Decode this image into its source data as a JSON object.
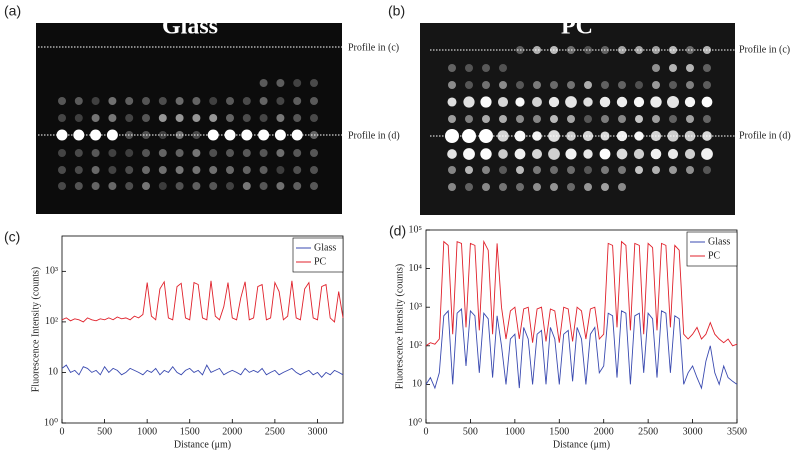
{
  "images": [
    {
      "label": "(a)",
      "title": "Glass",
      "profiles": [
        "Profile in (c)",
        "Profile in (d)"
      ]
    },
    {
      "label": "(b)",
      "title": "PC",
      "profiles": [
        "Profile in (c)",
        "Profile in (d)"
      ]
    }
  ],
  "chart_data": [
    {
      "type": "line",
      "label": "(c)",
      "xlabel": "Distance (μm)",
      "ylabel": "Fluorescence Intensity (counts)",
      "yscale": "log",
      "legend": "upper right",
      "xlim": [
        0,
        3300
      ],
      "xticks": [
        0,
        500,
        1000,
        1500,
        2000,
        2500,
        3000
      ],
      "ylim": [
        1,
        5000
      ],
      "yticks": [
        {
          "value": 1,
          "label": "10⁰"
        },
        10,
        {
          "value": 100,
          "label": "10²"
        },
        {
          "value": 1000,
          "label": "10³"
        }
      ],
      "x": [
        0,
        50,
        100,
        150,
        200,
        250,
        300,
        350,
        400,
        450,
        500,
        550,
        600,
        650,
        700,
        750,
        800,
        850,
        900,
        950,
        1000,
        1050,
        1100,
        1150,
        1200,
        1250,
        1300,
        1350,
        1400,
        1450,
        1500,
        1550,
        1600,
        1650,
        1700,
        1750,
        1800,
        1850,
        1900,
        1950,
        2000,
        2050,
        2100,
        2150,
        2200,
        2250,
        2300,
        2350,
        2400,
        2450,
        2500,
        2550,
        2600,
        2650,
        2700,
        2750,
        2800,
        2850,
        2900,
        2950,
        3000,
        3050,
        3100,
        3150,
        3200,
        3250,
        3300
      ],
      "series": [
        {
          "name": "Glass",
          "color": "#3a4ab0",
          "values": [
            12,
            14,
            10,
            11,
            9,
            13,
            12,
            10,
            11,
            9,
            13,
            10,
            12,
            11,
            9,
            10,
            12,
            11,
            10,
            9,
            11,
            10,
            12,
            9,
            11,
            10,
            13,
            10,
            9,
            11,
            12,
            10,
            11,
            9,
            14,
            10,
            11,
            12,
            9,
            10,
            11,
            10,
            9,
            12,
            10,
            11,
            10,
            12,
            9,
            10,
            11,
            9,
            10,
            11,
            12,
            10,
            9,
            10,
            11,
            9,
            10,
            8,
            10,
            9,
            11,
            10,
            9
          ]
        },
        {
          "name": "PC",
          "color": "#e0212b",
          "values": [
            110,
            120,
            105,
            115,
            110,
            100,
            120,
            110,
            105,
            115,
            110,
            120,
            110,
            125,
            115,
            120,
            110,
            130,
            120,
            140,
            600,
            130,
            110,
            450,
            620,
            120,
            110,
            500,
            580,
            120,
            110,
            600,
            550,
            120,
            110,
            650,
            130,
            110,
            200,
            600,
            120,
            110,
            300,
            620,
            110,
            120,
            500,
            550,
            110,
            120,
            600,
            400,
            110,
            130,
            650,
            120,
            110,
            450,
            600,
            120,
            110,
            500,
            550,
            120,
            100,
            400,
            120
          ]
        }
      ]
    },
    {
      "type": "line",
      "label": "(d)",
      "xlabel": "Distance (μm)",
      "ylabel": "Fluorescence Intensity (counts)",
      "yscale": "log",
      "legend": "upper right",
      "xlim": [
        0,
        3500
      ],
      "xticks": [
        0,
        500,
        1000,
        1500,
        2000,
        2500,
        3000,
        3500
      ],
      "ylim": [
        1,
        100000
      ],
      "yticks": [
        {
          "value": 1,
          "label": "10⁰"
        },
        10,
        {
          "value": 100,
          "label": "10²"
        },
        {
          "value": 1000,
          "label": "10³"
        },
        {
          "value": 10000,
          "label": "10⁴"
        },
        {
          "value": 100000,
          "label": "10⁵"
        }
      ],
      "x": [
        0,
        50,
        100,
        150,
        200,
        250,
        300,
        350,
        400,
        450,
        500,
        550,
        600,
        650,
        700,
        750,
        800,
        850,
        900,
        950,
        1000,
        1050,
        1100,
        1150,
        1200,
        1250,
        1300,
        1350,
        1400,
        1450,
        1500,
        1550,
        1600,
        1650,
        1700,
        1750,
        1800,
        1850,
        1900,
        1950,
        2000,
        2050,
        2100,
        2150,
        2200,
        2250,
        2300,
        2350,
        2400,
        2450,
        2500,
        2550,
        2600,
        2650,
        2700,
        2750,
        2800,
        2850,
        2900,
        2950,
        3000,
        3050,
        3100,
        3150,
        3200,
        3250,
        3300,
        3350,
        3400,
        3450,
        3500
      ],
      "series": [
        {
          "name": "Glass",
          "color": "#3a4ab0",
          "values": [
            10,
            15,
            8,
            20,
            600,
            800,
            10,
            700,
            900,
            30,
            800,
            600,
            20,
            700,
            500,
            15,
            600,
            100,
            10,
            150,
            200,
            8,
            300,
            150,
            10,
            200,
            250,
            10,
            300,
            150,
            10,
            200,
            250,
            12,
            300,
            150,
            10,
            200,
            300,
            20,
            30,
            700,
            600,
            15,
            800,
            700,
            10,
            600,
            700,
            20,
            700,
            500,
            15,
            800,
            700,
            20,
            600,
            500,
            10,
            20,
            30,
            15,
            8,
            40,
            100,
            20,
            10,
            30,
            15,
            12,
            10
          ]
        },
        {
          "name": "PC",
          "color": "#e0212b",
          "values": [
            100,
            120,
            110,
            150,
            50000,
            40000,
            200,
            50000,
            45000,
            300,
            45000,
            40000,
            250,
            50000,
            30000,
            200,
            45000,
            1000,
            150,
            800,
            1000,
            150,
            900,
            1000,
            120,
            900,
            1000,
            130,
            900,
            800,
            120,
            1000,
            900,
            130,
            1000,
            800,
            150,
            900,
            1000,
            150,
            200,
            45000,
            40000,
            300,
            50000,
            40000,
            250,
            45000,
            40000,
            200,
            45000,
            35000,
            250,
            45000,
            40000,
            300,
            40000,
            30000,
            200,
            150,
            200,
            300,
            150,
            200,
            400,
            200,
            150,
            120,
            150,
            100,
            110
          ]
        }
      ]
    }
  ]
}
